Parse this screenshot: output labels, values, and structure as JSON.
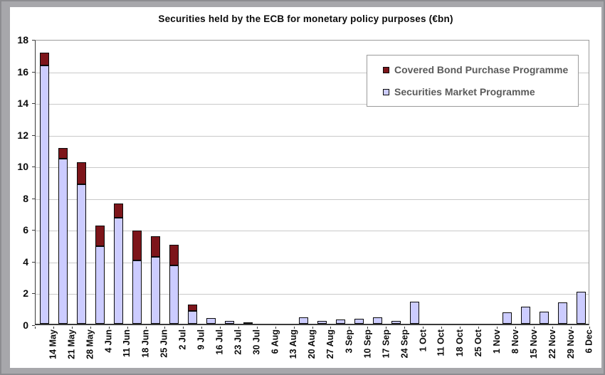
{
  "page": {
    "title": "Securities held by the ECB for monetary policy purposes (€bn)"
  },
  "legend": {
    "items": [
      {
        "label": "Covered Bond Purchase Programme",
        "color": "#7d151a"
      },
      {
        "label": "Securities Market Programme",
        "color": "#ccccff"
      }
    ]
  },
  "colors": {
    "smp_fill": "#ccccff",
    "cbpp_fill": "#7d151a",
    "bar_outline": "#0a0a0a",
    "gridline": "#c9c9c9",
    "page_background": "#a7a7ab",
    "panel_background": "#ffffff",
    "legend_text": "#5a5a5a"
  },
  "chart_data": {
    "type": "bar",
    "stacked": true,
    "title": "Securities held by the ECB for monetary policy purposes (€bn)",
    "xlabel": "",
    "ylabel": "",
    "ylim": [
      0,
      18
    ],
    "ytick_step": 2,
    "yticks": [
      0,
      2,
      4,
      6,
      8,
      10,
      12,
      14,
      16,
      18
    ],
    "grid": "horizontal",
    "legend_position": "top-right",
    "categories": [
      "14 May",
      "21 May",
      "28 May",
      "4 Jun",
      "11 Jun",
      "18 Jun",
      "25 Jun",
      "2 Jul",
      "9 Jul",
      "16 Jul",
      "23 Jul",
      "30 Jul",
      "6 Aug",
      "13 Aug",
      "20 Aug",
      "27 Aug",
      "3 Sep",
      "10 Sep",
      "17 Sep",
      "24 Sep",
      "1 Oct",
      "11 Oct",
      "18 Oct",
      "25 Oct",
      "1 Nov",
      "8 Nov",
      "15 Nov",
      "22 Nov",
      "29 Nov",
      "6 Dec"
    ],
    "series": [
      {
        "name": "Securities Market Programme",
        "color": "#ccccff",
        "values": [
          16.3,
          10.4,
          8.8,
          4.9,
          6.7,
          4.0,
          4.2,
          3.7,
          0.8,
          0.35,
          0.2,
          0.1,
          0,
          0,
          0.4,
          0.2,
          0.25,
          0.3,
          0.4,
          0.2,
          1.4,
          0,
          0,
          0,
          0,
          0.7,
          1.1,
          0.75,
          1.35,
          2.0
        ]
      },
      {
        "name": "Covered Bond Purchase Programme",
        "color": "#7d151a",
        "values": [
          0.8,
          0.7,
          1.4,
          1.3,
          0.9,
          1.9,
          1.3,
          1.3,
          0.4,
          0,
          0,
          0,
          0,
          0,
          0,
          0,
          0,
          0,
          0,
          0,
          0,
          0,
          0,
          0,
          0,
          0,
          0,
          0,
          0,
          0
        ]
      }
    ],
    "totals": [
      17.1,
      11.1,
      10.2,
      6.2,
      7.6,
      5.9,
      5.5,
      5.0,
      1.2,
      0.35,
      0.2,
      0.1,
      0,
      0,
      0.4,
      0.2,
      0.25,
      0.3,
      0.4,
      0.2,
      1.4,
      0,
      0,
      0,
      0,
      0.7,
      1.1,
      0.75,
      1.35,
      2.0
    ]
  }
}
